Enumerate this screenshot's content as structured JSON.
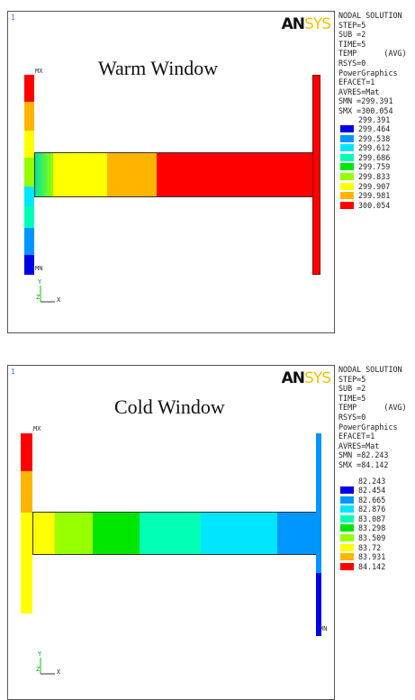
{
  "warm": {
    "corner_number": "1",
    "title": "Warm Window",
    "mx_label": "MX",
    "mn_label": "MN",
    "axis": {
      "y": "Y",
      "z": "Z",
      "x": "X"
    },
    "logo": {
      "an": "AN",
      "sys": "SYS"
    },
    "info_lines": [
      "NODAL SOLUTION",
      "STEP=5",
      "SUB =2",
      "TIME=5",
      "TEMP      (AVG)",
      "RSYS=0",
      "PowerGraphics",
      "EFACET=1",
      "AVRES=Mat",
      "SMN =299.391",
      "SMX =300.054"
    ],
    "legend_top": "299.391",
    "legend_labels": [
      "299.464",
      "299.538",
      "299.612",
      "299.686",
      "299.759",
      "299.833",
      "299.907",
      "299.981",
      "300.054"
    ],
    "colors": [
      "#0000e6",
      "#0096ff",
      "#00e6ff",
      "#00ffb4",
      "#00e600",
      "#96ff00",
      "#ffff00",
      "#ffb400",
      "#ff0000"
    ]
  },
  "cold": {
    "corner_number": "1",
    "title": "Cold Window",
    "mx_label": "MX",
    "mn_label": "MN",
    "axis": {
      "y": "Y",
      "z": "Z",
      "x": "X"
    },
    "logo": {
      "an": "AN",
      "sys": "SYS"
    },
    "info_lines": [
      "NODAL SOLUTION",
      "STEP=5",
      "SUB =2",
      "TIME=5",
      "TEMP      (AVG)",
      "RSYS=0",
      "PowerGraphics",
      "EFACET=1",
      "AVRES=Mat",
      "SMN =82.243",
      "SMX =84.142"
    ],
    "legend_top": "82.243",
    "legend_labels": [
      "82.454",
      "82.665",
      "82.876",
      "83.087",
      "83.298",
      "83.509",
      "83.72",
      "83.931",
      "84.142"
    ],
    "colors": [
      "#0000e6",
      "#0096ff",
      "#00e6ff",
      "#00ffb4",
      "#00e600",
      "#96ff00",
      "#ffff00",
      "#ffb400",
      "#ff0000"
    ]
  }
}
